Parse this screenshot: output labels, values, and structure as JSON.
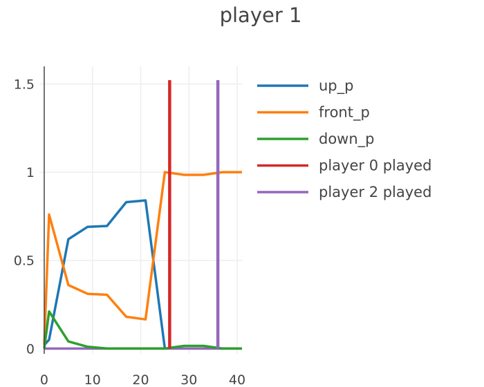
{
  "chart_data": {
    "type": "line",
    "title": "player 1",
    "xlabel": "",
    "ylabel": "",
    "xlim": [
      -1,
      41
    ],
    "ylim": [
      -0.03,
      1.6
    ],
    "xticks": [
      0,
      10,
      20,
      30,
      40
    ],
    "yticks": [
      0,
      0.5,
      1,
      1.5
    ],
    "ytick_labels": [
      "0",
      "0.5",
      "1",
      "1.5"
    ],
    "grid": true,
    "legend_position": "right",
    "series": [
      {
        "name": "up_p",
        "color": "#1f77b4",
        "x": [
          0,
          1,
          5,
          9,
          13,
          17,
          21,
          25
        ],
        "y": [
          0.02,
          0.05,
          0.62,
          0.69,
          0.695,
          0.83,
          0.84,
          0.0
        ]
      },
      {
        "name": "front_p",
        "color": "#ff7f0e",
        "x": [
          0,
          1,
          5,
          9,
          13,
          17,
          21,
          25,
          29,
          33,
          37,
          41
        ],
        "y": [
          0.02,
          0.76,
          0.36,
          0.31,
          0.305,
          0.18,
          0.165,
          1.0,
          0.985,
          0.985,
          1.0,
          1.0
        ]
      },
      {
        "name": "down_p",
        "color": "#2ca02c",
        "x": [
          0,
          1,
          5,
          9,
          13,
          17,
          21,
          25,
          29,
          33,
          37,
          41
        ],
        "y": [
          0.0,
          0.21,
          0.04,
          0.01,
          0.0,
          0.0,
          0.0,
          0.0,
          0.015,
          0.015,
          0.0,
          0.0
        ]
      },
      {
        "name": "player 0 played",
        "color": "#d62728",
        "vertical_at": 26
      },
      {
        "name": "player 2 played",
        "color": "#9467bd",
        "vertical_at": 36
      }
    ],
    "baseline": {
      "color": "#9467bd",
      "y": 0
    }
  }
}
